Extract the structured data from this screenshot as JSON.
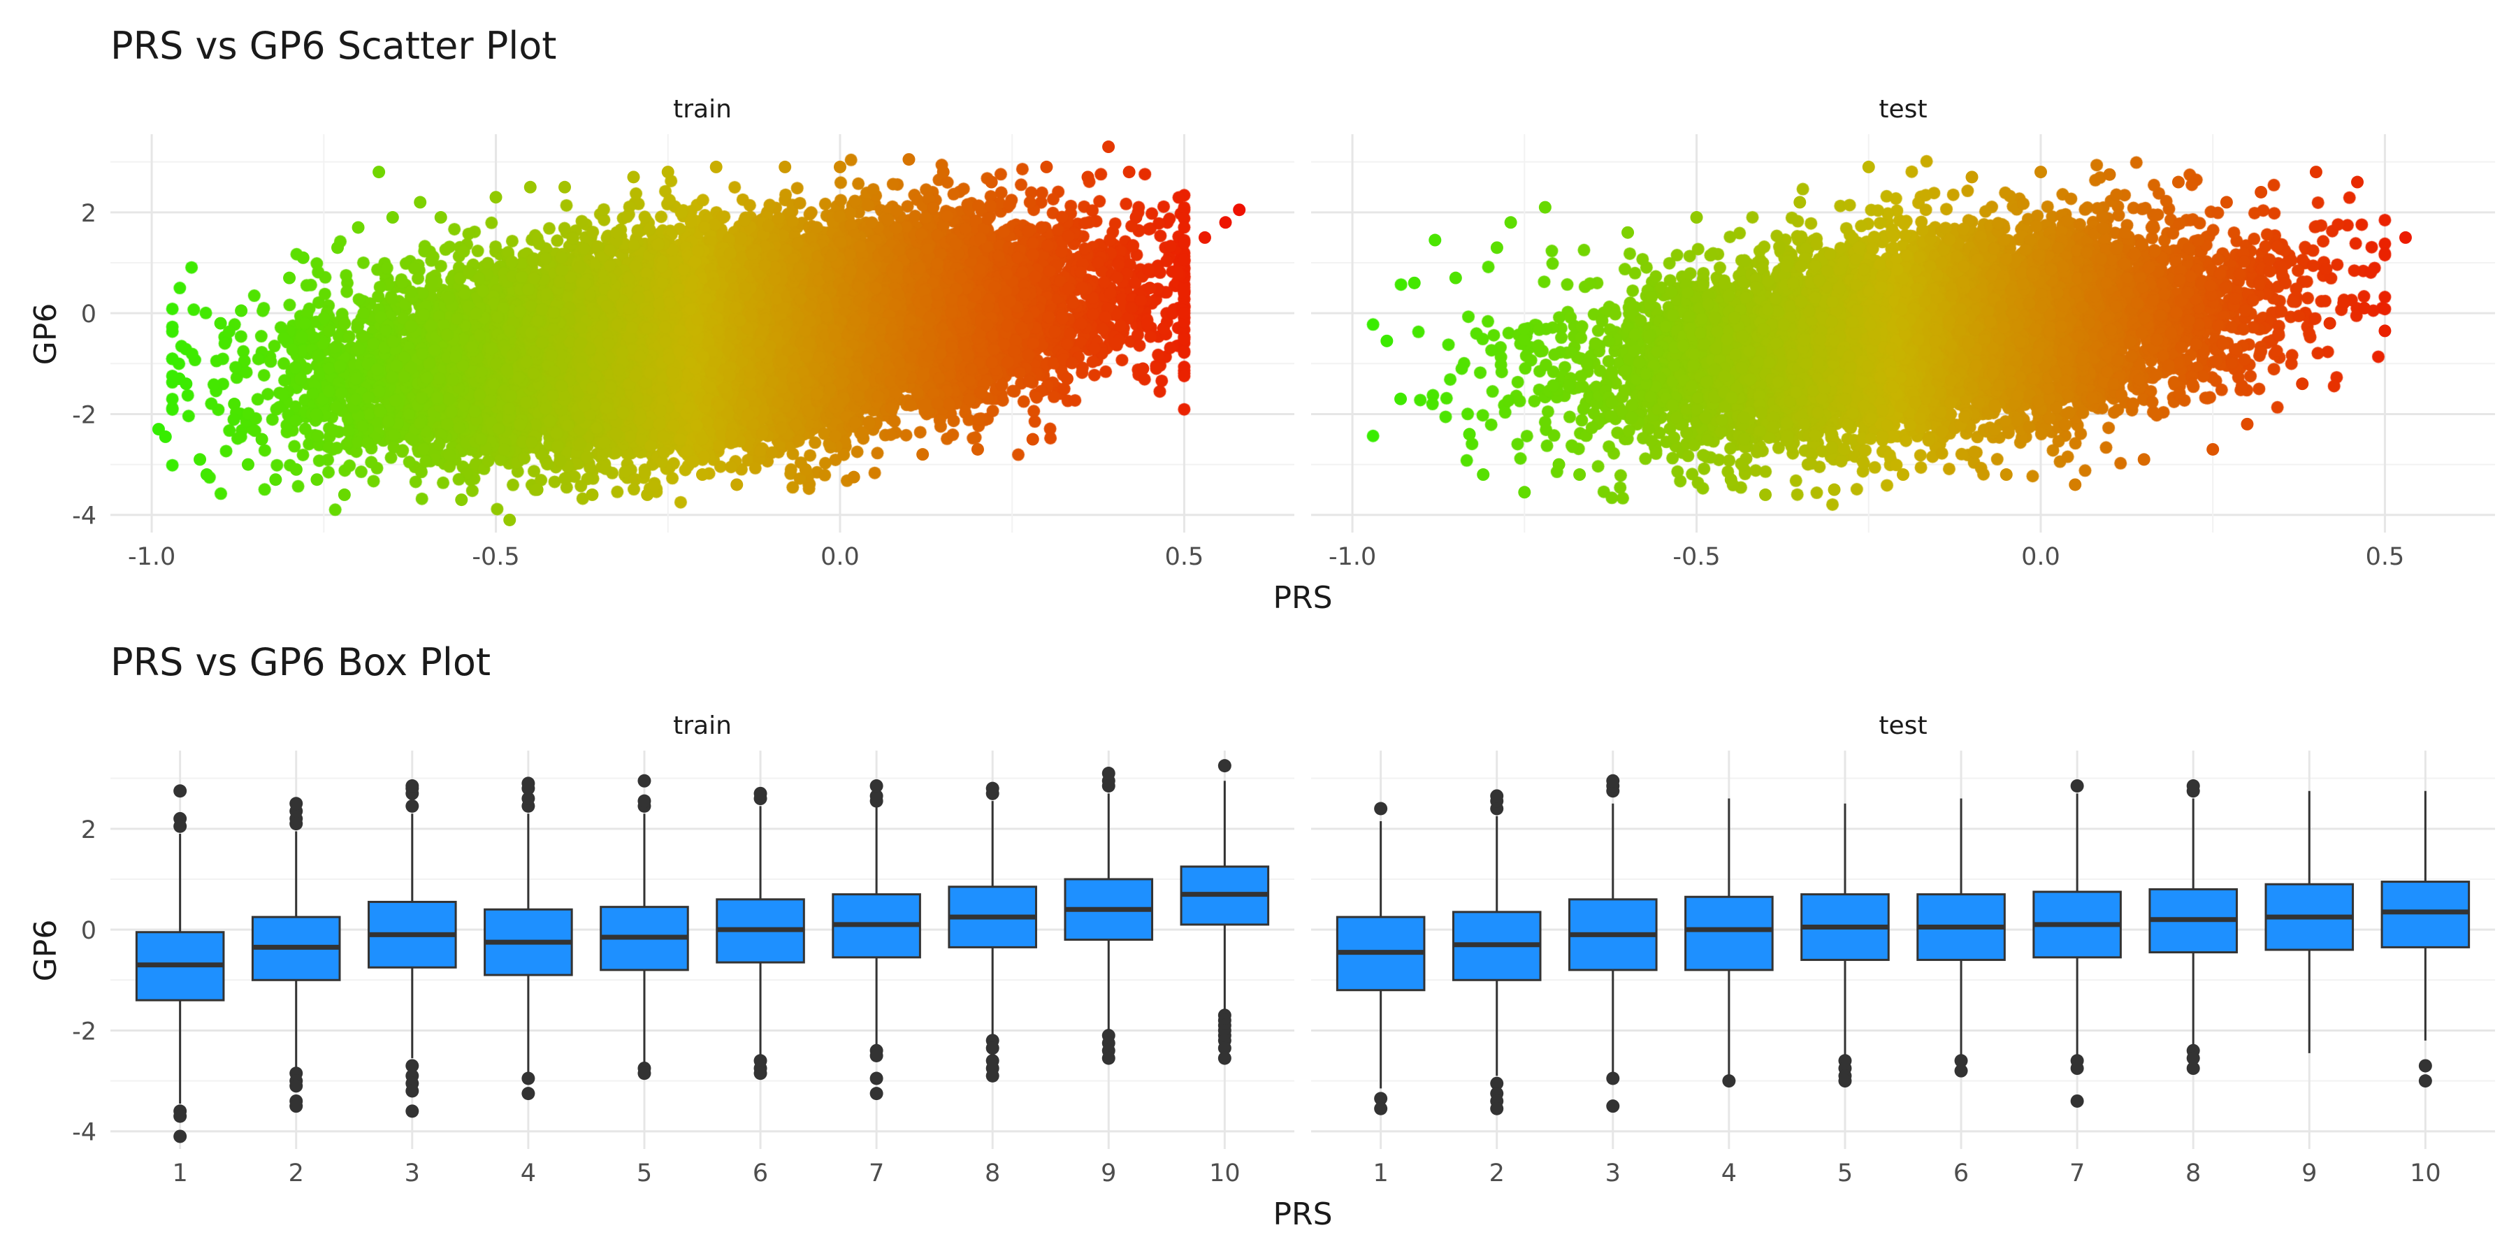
{
  "chart_data": [
    {
      "type": "scatter",
      "title": "PRS vs GP6 Scatter Plot",
      "xlabel": "PRS",
      "ylabel": "GP6",
      "xlim": [
        -1.06,
        0.66
      ],
      "ylim": [
        -4.35,
        3.55
      ],
      "x_ticks": [
        -1.0,
        -0.5,
        0.0,
        0.5
      ],
      "x_tick_labels": [
        "-1.0",
        "-0.5",
        "0.0",
        "0.5"
      ],
      "y_ticks": [
        -4,
        -2,
        0,
        2
      ],
      "y_tick_labels": [
        "-4",
        "-2",
        "0",
        "2"
      ],
      "grid": true,
      "legend": "none",
      "color_scale": {
        "low": "#33ee00",
        "mid": "#c8b400",
        "high": "#ee1100"
      },
      "facets": [
        {
          "name": "train",
          "points": [
            [
              -0.99,
              -2.3
            ],
            [
              -0.98,
              -2.45
            ],
            [
              -0.96,
              -1.3
            ],
            [
              -0.95,
              -1.4
            ],
            [
              -0.93,
              -2.9
            ],
            [
              -0.92,
              -3.2
            ],
            [
              -0.9,
              -0.2
            ],
            [
              -0.88,
              -1.8
            ],
            [
              -0.87,
              0.05
            ],
            [
              -0.86,
              -3.0
            ],
            [
              -0.84,
              -2.5
            ],
            [
              -0.82,
              -3.3
            ],
            [
              -0.8,
              0.7
            ],
            [
              -0.79,
              -3.1
            ],
            [
              -0.78,
              1.1
            ],
            [
              -0.76,
              -3.3
            ],
            [
              -0.73,
              1.3
            ],
            [
              -0.72,
              -3.6
            ],
            [
              -0.7,
              1.7
            ],
            [
              -0.67,
              2.8
            ],
            [
              -0.65,
              1.9
            ],
            [
              -0.61,
              2.2
            ],
            [
              -0.58,
              1.9
            ],
            [
              -0.55,
              -3.7
            ],
            [
              -0.5,
              2.3
            ],
            [
              -0.48,
              -4.1
            ],
            [
              -0.45,
              2.5
            ],
            [
              -0.44,
              -3.5
            ],
            [
              -0.4,
              2.5
            ],
            [
              -0.36,
              -3.6
            ],
            [
              -0.3,
              2.7
            ],
            [
              -0.28,
              -3.6
            ],
            [
              -0.25,
              2.8
            ],
            [
              -0.2,
              -3.2
            ],
            [
              -0.18,
              2.9
            ],
            [
              -0.15,
              -3.4
            ],
            [
              -0.08,
              2.9
            ],
            [
              -0.05,
              -3.1
            ],
            [
              0.0,
              2.9
            ],
            [
              0.02,
              -3.25
            ],
            [
              0.1,
              3.05
            ],
            [
              0.12,
              -2.8
            ],
            [
              0.15,
              2.8
            ],
            [
              0.2,
              -2.7
            ],
            [
              0.22,
              2.6
            ],
            [
              0.28,
              -2.5
            ],
            [
              0.3,
              2.9
            ],
            [
              0.33,
              -1.3
            ],
            [
              0.36,
              2.7
            ],
            [
              0.39,
              3.3
            ],
            [
              0.4,
              -0.6
            ],
            [
              0.42,
              2.8
            ],
            [
              0.43,
              1.9
            ],
            [
              0.44,
              -1.1
            ],
            [
              0.45,
              0.5
            ],
            [
              0.47,
              -0.3
            ],
            [
              0.49,
              0.8
            ],
            [
              0.5,
              0.4
            ],
            [
              0.53,
              1.5
            ],
            [
              0.56,
              1.8
            ],
            [
              0.58,
              2.05
            ]
          ]
        },
        {
          "name": "test",
          "points": [
            [
              -0.95,
              -0.55
            ],
            [
              -0.93,
              -1.7
            ],
            [
              -0.91,
              0.6
            ],
            [
              -0.88,
              1.45
            ],
            [
              -0.85,
              0.7
            ],
            [
              -0.83,
              -2.4
            ],
            [
              -0.81,
              -3.2
            ],
            [
              -0.79,
              1.3
            ],
            [
              -0.77,
              1.8
            ],
            [
              -0.75,
              -3.55
            ],
            [
              -0.72,
              2.1
            ],
            [
              -0.7,
              -3.0
            ],
            [
              -0.67,
              -3.2
            ],
            [
              -0.6,
              1.6
            ],
            [
              -0.5,
              1.9
            ],
            [
              -0.45,
              -3.3
            ],
            [
              -0.4,
              -3.6
            ],
            [
              -0.35,
              2.2
            ],
            [
              -0.3,
              -3.5
            ],
            [
              -0.25,
              2.9
            ],
            [
              -0.2,
              -3.2
            ],
            [
              -0.1,
              2.7
            ],
            [
              -0.05,
              -3.2
            ],
            [
              0.0,
              2.8
            ],
            [
              0.05,
              -3.4
            ],
            [
              0.1,
              2.75
            ],
            [
              0.15,
              -2.9
            ],
            [
              0.2,
              2.6
            ],
            [
              0.25,
              -2.7
            ],
            [
              0.27,
              2.2
            ],
            [
              0.3,
              -2.2
            ],
            [
              0.32,
              2.4
            ],
            [
              0.35,
              0.9
            ],
            [
              0.38,
              -1.4
            ],
            [
              0.4,
              2.8
            ],
            [
              0.42,
              -0.2
            ],
            [
              0.44,
              0.2
            ],
            [
              0.46,
              2.6
            ],
            [
              0.47,
              0.1
            ],
            [
              0.5,
              -0.35
            ],
            [
              0.53,
              1.5
            ]
          ]
        }
      ]
    },
    {
      "type": "box",
      "title": "PRS vs GP6 Box Plot",
      "xlabel": "PRS",
      "ylabel": "GP6",
      "categories": [
        "1",
        "2",
        "3",
        "4",
        "5",
        "6",
        "7",
        "8",
        "9",
        "10"
      ],
      "ylim": [
        -4.35,
        3.55
      ],
      "y_ticks": [
        -4,
        -2,
        0,
        2
      ],
      "y_tick_labels": [
        "-4",
        "-2",
        "0",
        "2"
      ],
      "grid": true,
      "legend": "none",
      "fill_color": "#1e90ff",
      "line_color": "#333333",
      "facets": [
        {
          "name": "train",
          "boxes": [
            {
              "q1": -1.4,
              "median": -0.7,
              "q3": -0.05,
              "whislo": -3.45,
              "whishi": 1.9,
              "outliers": [
                2.2,
                2.05,
                2.75,
                -3.6,
                -3.7,
                -4.1
              ]
            },
            {
              "q1": -1.0,
              "median": -0.35,
              "q3": 0.25,
              "whislo": -2.75,
              "whishi": 1.95,
              "outliers": [
                2.1,
                2.2,
                2.35,
                2.5,
                -2.85,
                -3.0,
                -3.1,
                -3.4,
                -3.5
              ]
            },
            {
              "q1": -0.75,
              "median": -0.1,
              "q3": 0.55,
              "whislo": -2.55,
              "whishi": 2.3,
              "outliers": [
                2.45,
                2.7,
                2.8,
                2.85,
                -2.7,
                -2.9,
                -3.05,
                -3.2,
                -3.6
              ]
            },
            {
              "q1": -0.9,
              "median": -0.25,
              "q3": 0.4,
              "whislo": -2.85,
              "whishi": 2.3,
              "outliers": [
                2.45,
                2.6,
                2.8,
                2.9,
                -2.95,
                -3.25
              ]
            },
            {
              "q1": -0.8,
              "median": -0.15,
              "q3": 0.45,
              "whislo": -2.65,
              "whishi": 2.3,
              "outliers": [
                2.45,
                2.55,
                2.95,
                -2.75,
                -2.85
              ]
            },
            {
              "q1": -0.65,
              "median": 0.0,
              "q3": 0.6,
              "whislo": -2.5,
              "whishi": 2.45,
              "outliers": [
                2.6,
                2.7,
                -2.6,
                -2.75,
                -2.85
              ]
            },
            {
              "q1": -0.55,
              "median": 0.1,
              "q3": 0.7,
              "whislo": -2.3,
              "whishi": 2.45,
              "outliers": [
                2.55,
                2.65,
                2.85,
                -2.4,
                -2.5,
                -2.95,
                -3.25
              ]
            },
            {
              "q1": -0.35,
              "median": 0.25,
              "q3": 0.85,
              "whislo": -2.1,
              "whishi": 2.55,
              "outliers": [
                2.7,
                2.8,
                -2.2,
                -2.35,
                -2.6,
                -2.75,
                -2.9
              ]
            },
            {
              "q1": -0.2,
              "median": 0.4,
              "q3": 1.0,
              "whislo": -2.0,
              "whishi": 2.7,
              "outliers": [
                2.85,
                2.95,
                3.1,
                -2.1,
                -2.25,
                -2.4,
                -2.55
              ]
            },
            {
              "q1": 0.1,
              "median": 0.7,
              "q3": 1.25,
              "whislo": -1.6,
              "whishi": 2.95,
              "outliers": [
                3.25,
                -1.7,
                -1.8,
                -1.9,
                -2.0,
                -2.1,
                -2.2,
                -2.35,
                -2.55
              ]
            }
          ]
        },
        {
          "name": "test",
          "boxes": [
            {
              "q1": -1.2,
              "median": -0.45,
              "q3": 0.25,
              "whislo": -3.15,
              "whishi": 2.15,
              "outliers": [
                2.4,
                -3.35,
                -3.55
              ]
            },
            {
              "q1": -1.0,
              "median": -0.3,
              "q3": 0.35,
              "whislo": -2.9,
              "whishi": 2.25,
              "outliers": [
                2.4,
                2.55,
                2.65,
                -3.05,
                -3.25,
                -3.4,
                -3.55
              ]
            },
            {
              "q1": -0.8,
              "median": -0.1,
              "q3": 0.6,
              "whislo": -2.85,
              "whishi": 2.5,
              "outliers": [
                2.75,
                2.85,
                2.95,
                -2.95,
                -3.5
              ]
            },
            {
              "q1": -0.8,
              "median": 0.0,
              "q3": 0.65,
              "whislo": -2.95,
              "whishi": 2.6,
              "outliers": [
                -3.0
              ]
            },
            {
              "q1": -0.6,
              "median": 0.05,
              "q3": 0.7,
              "whislo": -2.5,
              "whishi": 2.5,
              "outliers": [
                -2.6,
                -2.75,
                -2.9,
                -3.0
              ]
            },
            {
              "q1": -0.6,
              "median": 0.05,
              "q3": 0.7,
              "whislo": -2.5,
              "whishi": 2.6,
              "outliers": [
                -2.6,
                -2.8
              ]
            },
            {
              "q1": -0.55,
              "median": 0.1,
              "q3": 0.75,
              "whislo": -2.5,
              "whishi": 2.7,
              "outliers": [
                2.85,
                -2.6,
                -2.75,
                -3.4
              ]
            },
            {
              "q1": -0.45,
              "median": 0.2,
              "q3": 0.8,
              "whislo": -2.3,
              "whishi": 2.6,
              "outliers": [
                2.75,
                2.85,
                -2.4,
                -2.55,
                -2.75
              ]
            },
            {
              "q1": -0.4,
              "median": 0.25,
              "q3": 0.9,
              "whislo": -2.45,
              "whishi": 2.75,
              "outliers": []
            },
            {
              "q1": -0.35,
              "median": 0.35,
              "q3": 0.95,
              "whislo": -2.2,
              "whishi": 2.75,
              "outliers": [
                -2.7,
                -3.0
              ]
            }
          ]
        }
      ]
    }
  ]
}
